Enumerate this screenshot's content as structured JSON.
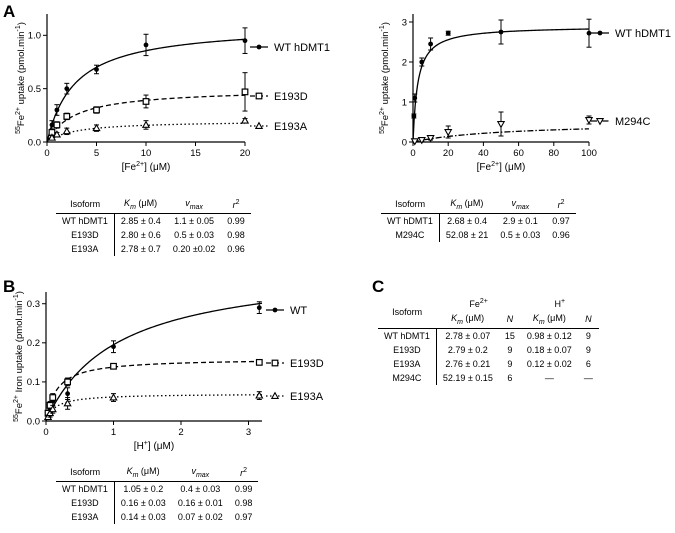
{
  "panel_labels": [
    "A",
    "B",
    "C"
  ],
  "chart_data": [
    {
      "id": "A-left",
      "type": "scatter",
      "xlabel_parts": {
        "pre": "[Fe",
        "sup": "2+",
        "post": "] (μM)"
      },
      "ylabel_parts": {
        "sup1": "55",
        "main": "Fe",
        "sup2": "2+",
        "post": " uptake (pmol.min",
        "sup3": "-1",
        "end": ")"
      },
      "xlim": [
        0,
        20
      ],
      "ylim": [
        0,
        1.2
      ],
      "xticks": [
        "0",
        "5",
        "10",
        "15",
        "20"
      ],
      "yticks": [
        "0.0",
        "0.5",
        "1.0"
      ],
      "series": [
        {
          "name": "WT hDMT1",
          "marker": "circle",
          "fit": "solid",
          "vmax": 1.1,
          "km": 2.85,
          "x": [
            0.5,
            1,
            2,
            5,
            10,
            20
          ],
          "y": [
            0.16,
            0.3,
            0.5,
            0.68,
            0.91,
            0.95
          ],
          "err": [
            0.04,
            0.05,
            0.05,
            0.04,
            0.1,
            0.12
          ]
        },
        {
          "name": "E193D",
          "marker": "square",
          "fit": "dashed",
          "vmax": 0.5,
          "km": 2.8,
          "x": [
            0.5,
            1,
            2,
            5,
            10,
            20
          ],
          "y": [
            0.09,
            0.16,
            0.24,
            0.3,
            0.38,
            0.47
          ],
          "err": [
            0.03,
            0.03,
            0.03,
            0.03,
            0.06,
            0.18
          ]
        },
        {
          "name": "E193A",
          "marker": "triangle",
          "fit": "dotted",
          "vmax": 0.2,
          "km": 2.78,
          "x": [
            0.5,
            1,
            2,
            5,
            10,
            20
          ],
          "y": [
            0.04,
            0.07,
            0.1,
            0.13,
            0.16,
            0.2
          ],
          "err": [
            0.02,
            0.02,
            0.03,
            0.03,
            0.04,
            0.02
          ]
        }
      ]
    },
    {
      "id": "A-right",
      "type": "scatter",
      "xlabel_parts": {
        "pre": "[Fe",
        "sup": "2+",
        "post": "] (μM)"
      },
      "ylabel_parts": {
        "sup1": "55",
        "main": "Fe",
        "sup2": "2+",
        "post": " uptake (pmol.min",
        "sup3": "-1",
        "end": ")"
      },
      "xlim": [
        0,
        100
      ],
      "ylim": [
        0,
        3.2
      ],
      "xticks": [
        "0",
        "20",
        "40",
        "60",
        "80",
        "100"
      ],
      "yticks": [
        "0",
        "1",
        "2",
        "3"
      ],
      "series": [
        {
          "name": "WT hDMT1",
          "marker": "circle",
          "fit": "solid",
          "vmax": 2.9,
          "km": 2.68,
          "x": [
            0.5,
            1,
            5,
            10,
            20,
            50,
            100
          ],
          "y": [
            0.65,
            1.1,
            2.0,
            2.45,
            2.72,
            2.75,
            2.72
          ],
          "err": [
            0.05,
            0.1,
            0.1,
            0.15,
            0.05,
            0.3,
            0.35
          ]
        },
        {
          "name": "M294C",
          "marker": "triangle-down",
          "fit": "dashdot",
          "vmax": 0.5,
          "km": 52.08,
          "x": [
            1,
            5,
            10,
            20,
            50,
            100
          ],
          "y": [
            0.02,
            0.05,
            0.1,
            0.25,
            0.45,
            0.55
          ],
          "err": [
            0.02,
            0.03,
            0.05,
            0.15,
            0.3,
            0.1
          ]
        }
      ]
    },
    {
      "id": "B",
      "type": "scatter",
      "xlabel_parts": {
        "pre": "[H",
        "sup": "+",
        "post": "] (μM)"
      },
      "ylabel_parts": {
        "sup1": "55",
        "main": "Fe",
        "sup2": "2+",
        "post": " Iron uptake (pmol.min",
        "sup3": "-1",
        "end": ")"
      },
      "xlim": [
        0,
        3.2
      ],
      "ylim": [
        0,
        0.33
      ],
      "xticks": [
        "0",
        "1",
        "2",
        "3"
      ],
      "yticks": [
        "0.0",
        "0.1",
        "0.2",
        "0.3"
      ],
      "series": [
        {
          "name": "WT",
          "marker": "circle",
          "fit": "solid",
          "vmax": 0.4,
          "km": 1.05,
          "x": [
            0.03,
            0.06,
            0.1,
            0.32,
            1.0,
            3.16
          ],
          "y": [
            0.015,
            0.03,
            0.05,
            0.07,
            0.19,
            0.29
          ],
          "err": [
            0.005,
            0.01,
            0.012,
            0.015,
            0.015,
            0.015
          ]
        },
        {
          "name": "E193D",
          "marker": "square",
          "fit": "dashed",
          "vmax": 0.16,
          "km": 0.16,
          "x": [
            0.03,
            0.06,
            0.1,
            0.32,
            1.0,
            3.16
          ],
          "y": [
            0.02,
            0.04,
            0.06,
            0.1,
            0.14,
            0.15
          ],
          "err": [
            0.005,
            0.01,
            0.01,
            0.01,
            0.005,
            0.005
          ]
        },
        {
          "name": "E193A",
          "marker": "triangle",
          "fit": "dotted",
          "vmax": 0.07,
          "km": 0.14,
          "x": [
            0.03,
            0.06,
            0.1,
            0.32,
            1.0,
            3.16
          ],
          "y": [
            0.01,
            0.02,
            0.03,
            0.045,
            0.06,
            0.065
          ],
          "err": [
            0.005,
            0.01,
            0.01,
            0.015,
            0.01,
            0.01
          ]
        }
      ]
    }
  ],
  "tables": {
    "a_left": {
      "headers": {
        "isoform": "Isoform",
        "km_k": "K",
        "km_sub": "m",
        "km_unit": " (μM)",
        "v_v": "v",
        "v_sub": "max",
        "r_r": "r",
        "r_sup": "2"
      },
      "rows": [
        {
          "isoform": "WT hDMT1",
          "km": "2.85 ± 0.4",
          "vmax": "1.1 ± 0.05",
          "r2": "0.99"
        },
        {
          "isoform": "E193D",
          "km": "2.80 ± 0.6",
          "vmax": "0.5 ± 0.03",
          "r2": "0.98"
        },
        {
          "isoform": "E193A",
          "km": "2.78 ± 0.7",
          "vmax": "0.20 ±0.02",
          "r2": "0.96"
        }
      ]
    },
    "a_right": {
      "headers": {
        "isoform": "Isoform",
        "km_k": "K",
        "km_sub": "m",
        "km_unit": " (μM)",
        "v_v": "v",
        "v_sub": "max",
        "r_r": "r",
        "r_sup": "2"
      },
      "rows": [
        {
          "isoform": "WT hDMT1",
          "km": "2.68 ± 0.4",
          "vmax": "2.9 ± 0.1",
          "r2": "0.97"
        },
        {
          "isoform": "M294C",
          "km": "52.08 ± 21",
          "vmax": "0.5 ± 0.03",
          "r2": "0.96"
        }
      ]
    },
    "b": {
      "headers": {
        "isoform": "Isoform",
        "km_k": "K",
        "km_sub": "m",
        "km_unit": " (μM)",
        "v_v": "v",
        "v_sub": "max",
        "r_r": "r",
        "r_sup": "2"
      },
      "rows": [
        {
          "isoform": "WT hDMT1",
          "km": "1.05 ± 0.2",
          "vmax": "0.4 ± 0.03",
          "r2": "0.99"
        },
        {
          "isoform": "E193D",
          "km": "0.16 ± 0.03",
          "vmax": "0.16 ± 0.01",
          "r2": "0.98"
        },
        {
          "isoform": "E193A",
          "km": "0.14 ± 0.03",
          "vmax": "0.07 ± 0.02",
          "r2": "0.97"
        }
      ]
    },
    "c": {
      "headers": {
        "isoform": "Isoform",
        "fe_main": "Fe",
        "fe_sup": "2+",
        "h_main": "H",
        "h_sup": "+",
        "km_k": "K",
        "km_sub": "m",
        "km_unit": " (μM)",
        "n": "N"
      },
      "rows": [
        {
          "isoform": "WT hDMT1",
          "fe_km": "2.78 ± 0.07",
          "fe_n": "15",
          "h_km": "0.98 ± 0.12",
          "h_n": "9"
        },
        {
          "isoform": "E193D",
          "fe_km": "2.79 ± 0.2",
          "fe_n": "9",
          "h_km": "0.18 ± 0.07",
          "h_n": "9"
        },
        {
          "isoform": "E193A",
          "fe_km": "2.76 ± 0.21",
          "fe_n": "9",
          "h_km": "0.12 ± 0.02",
          "h_n": "6"
        },
        {
          "isoform": "M294C",
          "fe_km": "52.19 ± 0.15",
          "fe_n": "6",
          "h_km": "—",
          "h_n": "—"
        }
      ]
    }
  }
}
